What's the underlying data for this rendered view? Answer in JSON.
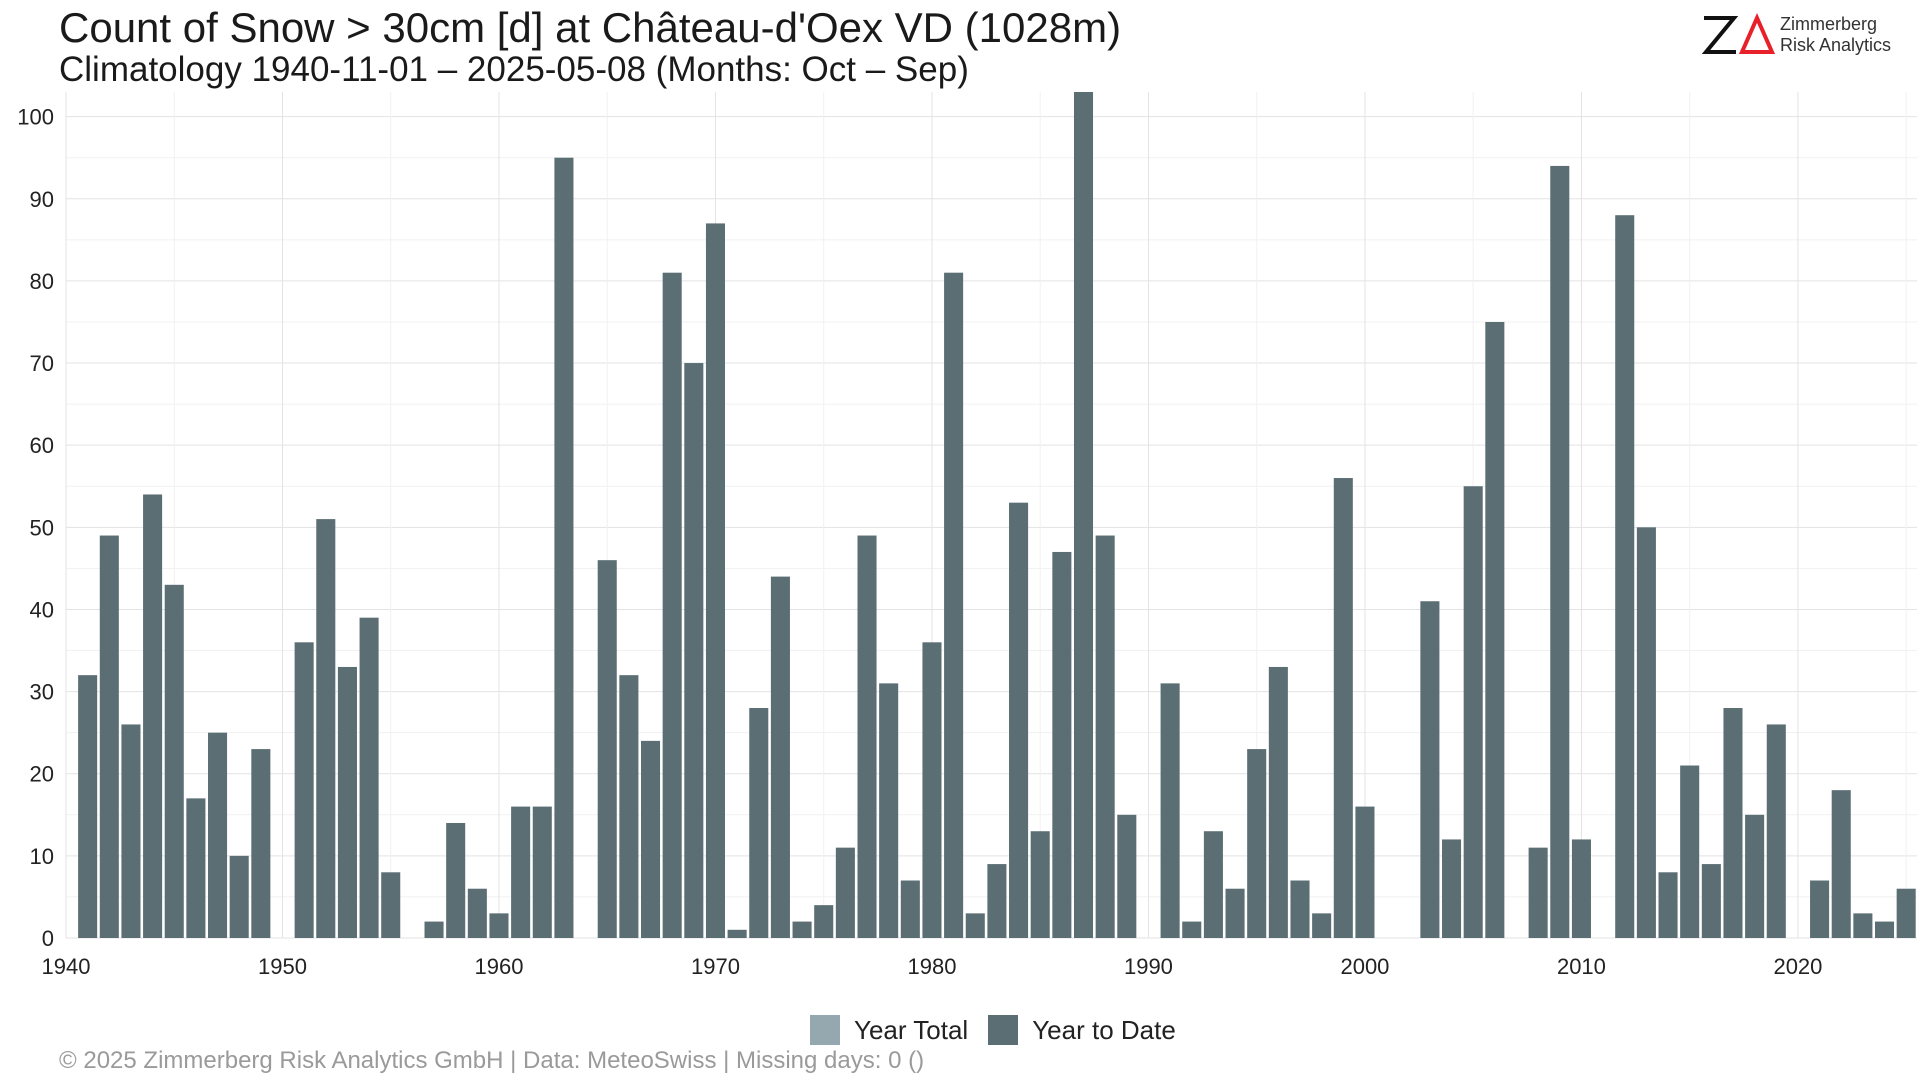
{
  "header": {
    "title": "Count of Snow > 30cm [d] at Château-d'Oex  VD (1028m)",
    "subtitle": "Climatology 1940-11-01 – 2025-05-08 (Months: Oct – Sep)"
  },
  "logo": {
    "line1": "Zimmerberg",
    "line2": "Risk Analytics",
    "accent_color": "#e8202a"
  },
  "legend": {
    "items": [
      {
        "label": "Year Total",
        "color": "#96a8af"
      },
      {
        "label": "Year to Date",
        "color": "#5a6e74"
      }
    ]
  },
  "footer": {
    "text": "©  2025 Zimmerberg Risk Analytics GmbH | Data: MeteoSwiss | Missing days: 0 ()"
  },
  "chart_data": {
    "type": "bar",
    "title": "Count of Snow > 30cm [d] at Château-d'Oex  VD (1028m)",
    "subtitle": "Climatology 1940-11-01 – 2025-05-08 (Months: Oct – Sep)",
    "xlim": [
      1940,
      2025.5
    ],
    "ylim": [
      0,
      103
    ],
    "x_ticks": [
      1940,
      1950,
      1960,
      1970,
      1980,
      1990,
      2000,
      2010,
      2020
    ],
    "y_ticks": [
      0,
      10,
      20,
      30,
      40,
      50,
      60,
      70,
      80,
      90,
      100
    ],
    "grid": true,
    "legend_position": "bottom",
    "series": [
      {
        "name": "Year to Date",
        "color": "#5a6e74",
        "x": [
          1941,
          1942,
          1943,
          1944,
          1945,
          1946,
          1947,
          1948,
          1949,
          1950,
          1951,
          1952,
          1953,
          1954,
          1955,
          1956,
          1957,
          1958,
          1959,
          1960,
          1961,
          1962,
          1963,
          1964,
          1965,
          1966,
          1967,
          1968,
          1969,
          1970,
          1971,
          1972,
          1973,
          1974,
          1975,
          1976,
          1977,
          1978,
          1979,
          1980,
          1981,
          1982,
          1983,
          1984,
          1985,
          1986,
          1987,
          1988,
          1989,
          1990,
          1991,
          1992,
          1993,
          1994,
          1995,
          1996,
          1997,
          1998,
          1999,
          2000,
          2001,
          2002,
          2003,
          2004,
          2005,
          2006,
          2007,
          2008,
          2009,
          2010,
          2011,
          2012,
          2013,
          2014,
          2015,
          2016,
          2017,
          2018,
          2019,
          2020,
          2021,
          2022,
          2023,
          2024,
          2025
        ],
        "values": [
          32,
          49,
          26,
          54,
          43,
          17,
          25,
          10,
          23,
          0,
          36,
          51,
          33,
          39,
          8,
          0,
          2,
          14,
          6,
          3,
          16,
          16,
          95,
          0,
          46,
          32,
          24,
          81,
          70,
          87,
          1,
          28,
          44,
          2,
          4,
          11,
          49,
          31,
          7,
          36,
          81,
          3,
          9,
          53,
          13,
          47,
          103,
          49,
          15,
          0,
          31,
          2,
          13,
          6,
          23,
          33,
          7,
          3,
          56,
          16,
          0,
          0,
          41,
          12,
          55,
          75,
          0,
          11,
          94,
          12,
          0,
          88,
          50,
          8,
          21,
          9,
          28,
          15,
          26,
          0,
          7,
          18,
          3,
          2,
          6
        ]
      }
    ]
  }
}
